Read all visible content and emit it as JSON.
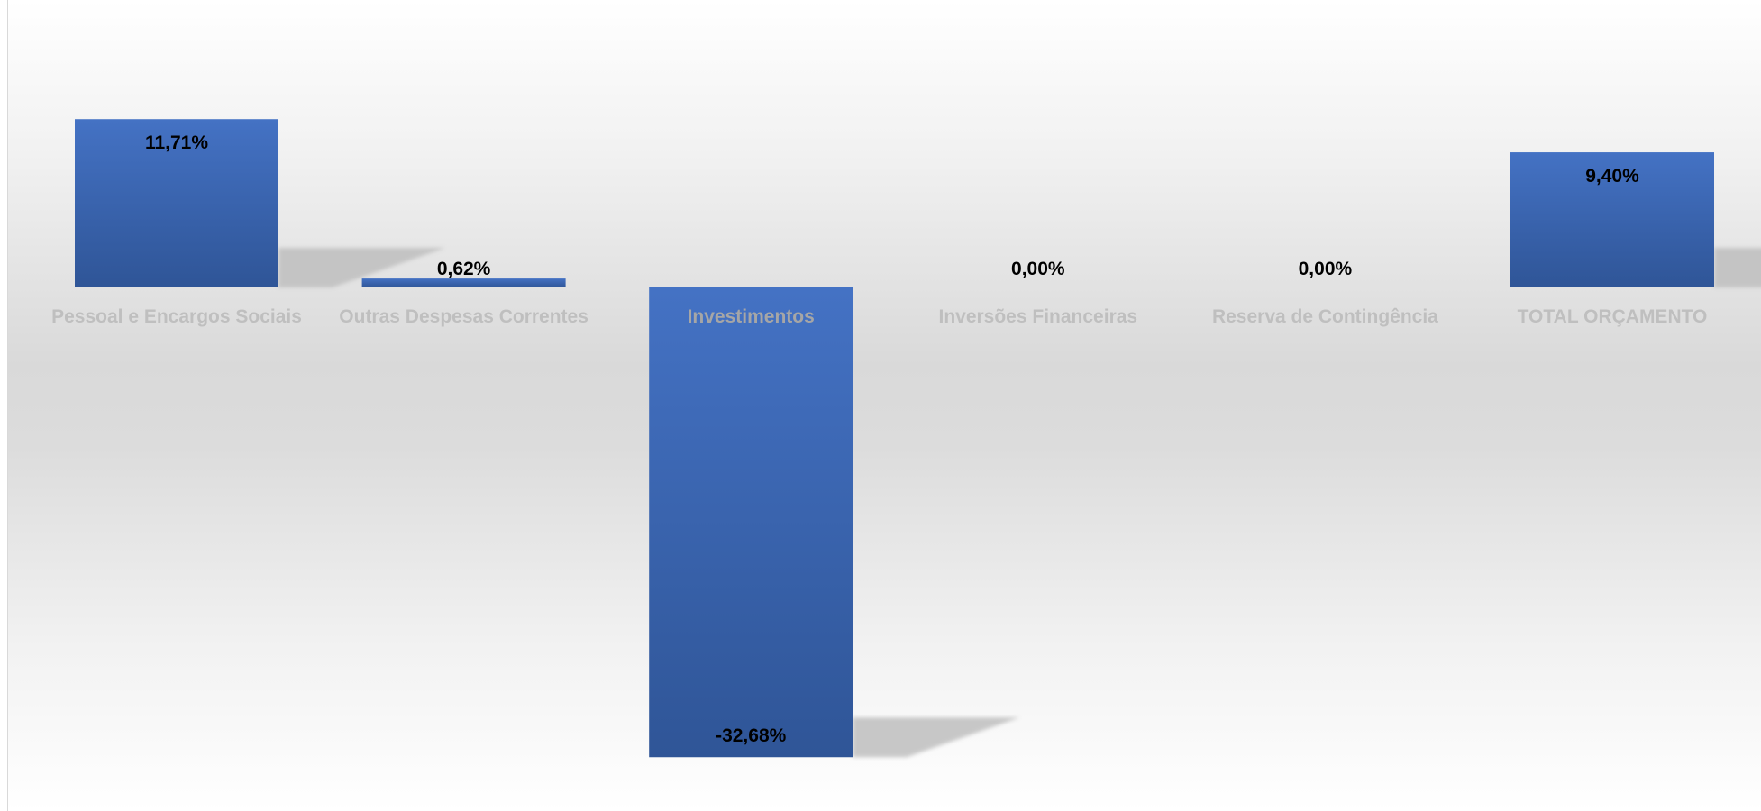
{
  "chart_data": {
    "type": "bar",
    "title": "",
    "xlabel": "",
    "ylabel": "",
    "categories": [
      "Pessoal e Encargos Sociais",
      "Outras Despesas Correntes",
      "Investimentos",
      "Inversões Financeiras",
      "Reserva de Contingência",
      "TOTAL ORÇAMENTO"
    ],
    "values": [
      11.71,
      0.62,
      -32.68,
      0.0,
      0.0,
      9.4
    ],
    "data_labels": [
      "11,71%",
      "0,62%",
      "-32,68%",
      "0,00%",
      "0,00%",
      "9,40%"
    ],
    "ylim": [
      -34,
      20
    ],
    "grid": false,
    "legend": "none",
    "colors": {
      "bar_top": "#4472c4",
      "bar_bottom": "#2f5597",
      "shadow": "#bfbfbf",
      "category_label": "#bfbfbf",
      "category_label_on_bar": "#a6a6a6"
    }
  }
}
